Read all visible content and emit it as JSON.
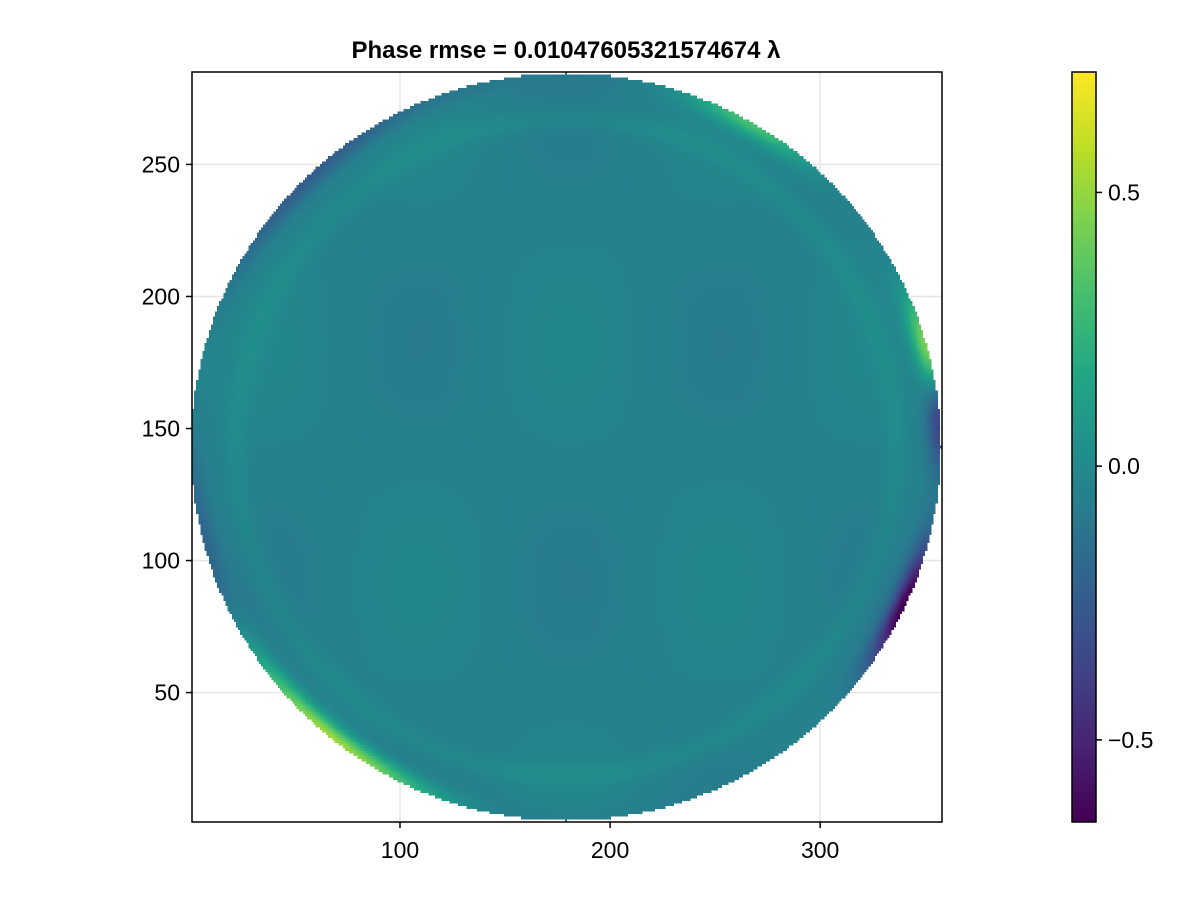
{
  "chart_data": {
    "type": "heatmap",
    "title": "Phase rmse = 0.01047605321574674 λ",
    "xlabel": "",
    "ylabel": "",
    "xlim": [
      1,
      358
    ],
    "ylim": [
      1,
      285
    ],
    "x_ticks": [
      100,
      200,
      300
    ],
    "y_ticks": [
      50,
      100,
      150,
      200,
      250
    ],
    "x_tick_labels": [
      "100",
      "200",
      "300"
    ],
    "y_tick_labels": [
      "50",
      "100",
      "150",
      "200",
      "250"
    ],
    "grid": true,
    "aperture": {
      "shape": "circle",
      "center_x": 179,
      "center_y": 143,
      "radius_x": 179,
      "radius_y": 142
    },
    "background_value": -0.05,
    "features": [
      {
        "kind": "edge-bright-arc",
        "angle_deg": 235,
        "width_deg": 22,
        "value": 0.7
      },
      {
        "kind": "edge-bright-arc",
        "angle_deg": 15,
        "width_deg": 8,
        "value": 0.55
      },
      {
        "kind": "edge-bright-arc",
        "angle_deg": 60,
        "width_deg": 10,
        "value": 0.35
      },
      {
        "kind": "edge-bright-arc",
        "angle_deg": 170,
        "width_deg": 25,
        "value": 0.1
      },
      {
        "kind": "edge-dark-arc",
        "angle_deg": 335,
        "width_deg": 10,
        "value": -0.6
      },
      {
        "kind": "edge-dark-arc",
        "angle_deg": 5,
        "width_deg": 8,
        "value": -0.4
      },
      {
        "kind": "edge-dark-arc",
        "angle_deg": 250,
        "width_deg": 20,
        "value": -0.25
      },
      {
        "kind": "edge-dark-arc",
        "angle_deg": 135,
        "width_deg": 30,
        "value": -0.2
      },
      {
        "kind": "edge-dark-arc",
        "angle_deg": 195,
        "width_deg": 20,
        "value": -0.2
      },
      {
        "kind": "inner-ring",
        "radius_frac": 0.88,
        "value": 0.05
      }
    ],
    "colorbar": {
      "colormap": "viridis",
      "range": [
        -0.65,
        0.72
      ],
      "ticks": [
        -0.5,
        0.0,
        0.5
      ],
      "tick_labels": [
        "−0.5",
        "0.0",
        "0.5"
      ]
    }
  }
}
